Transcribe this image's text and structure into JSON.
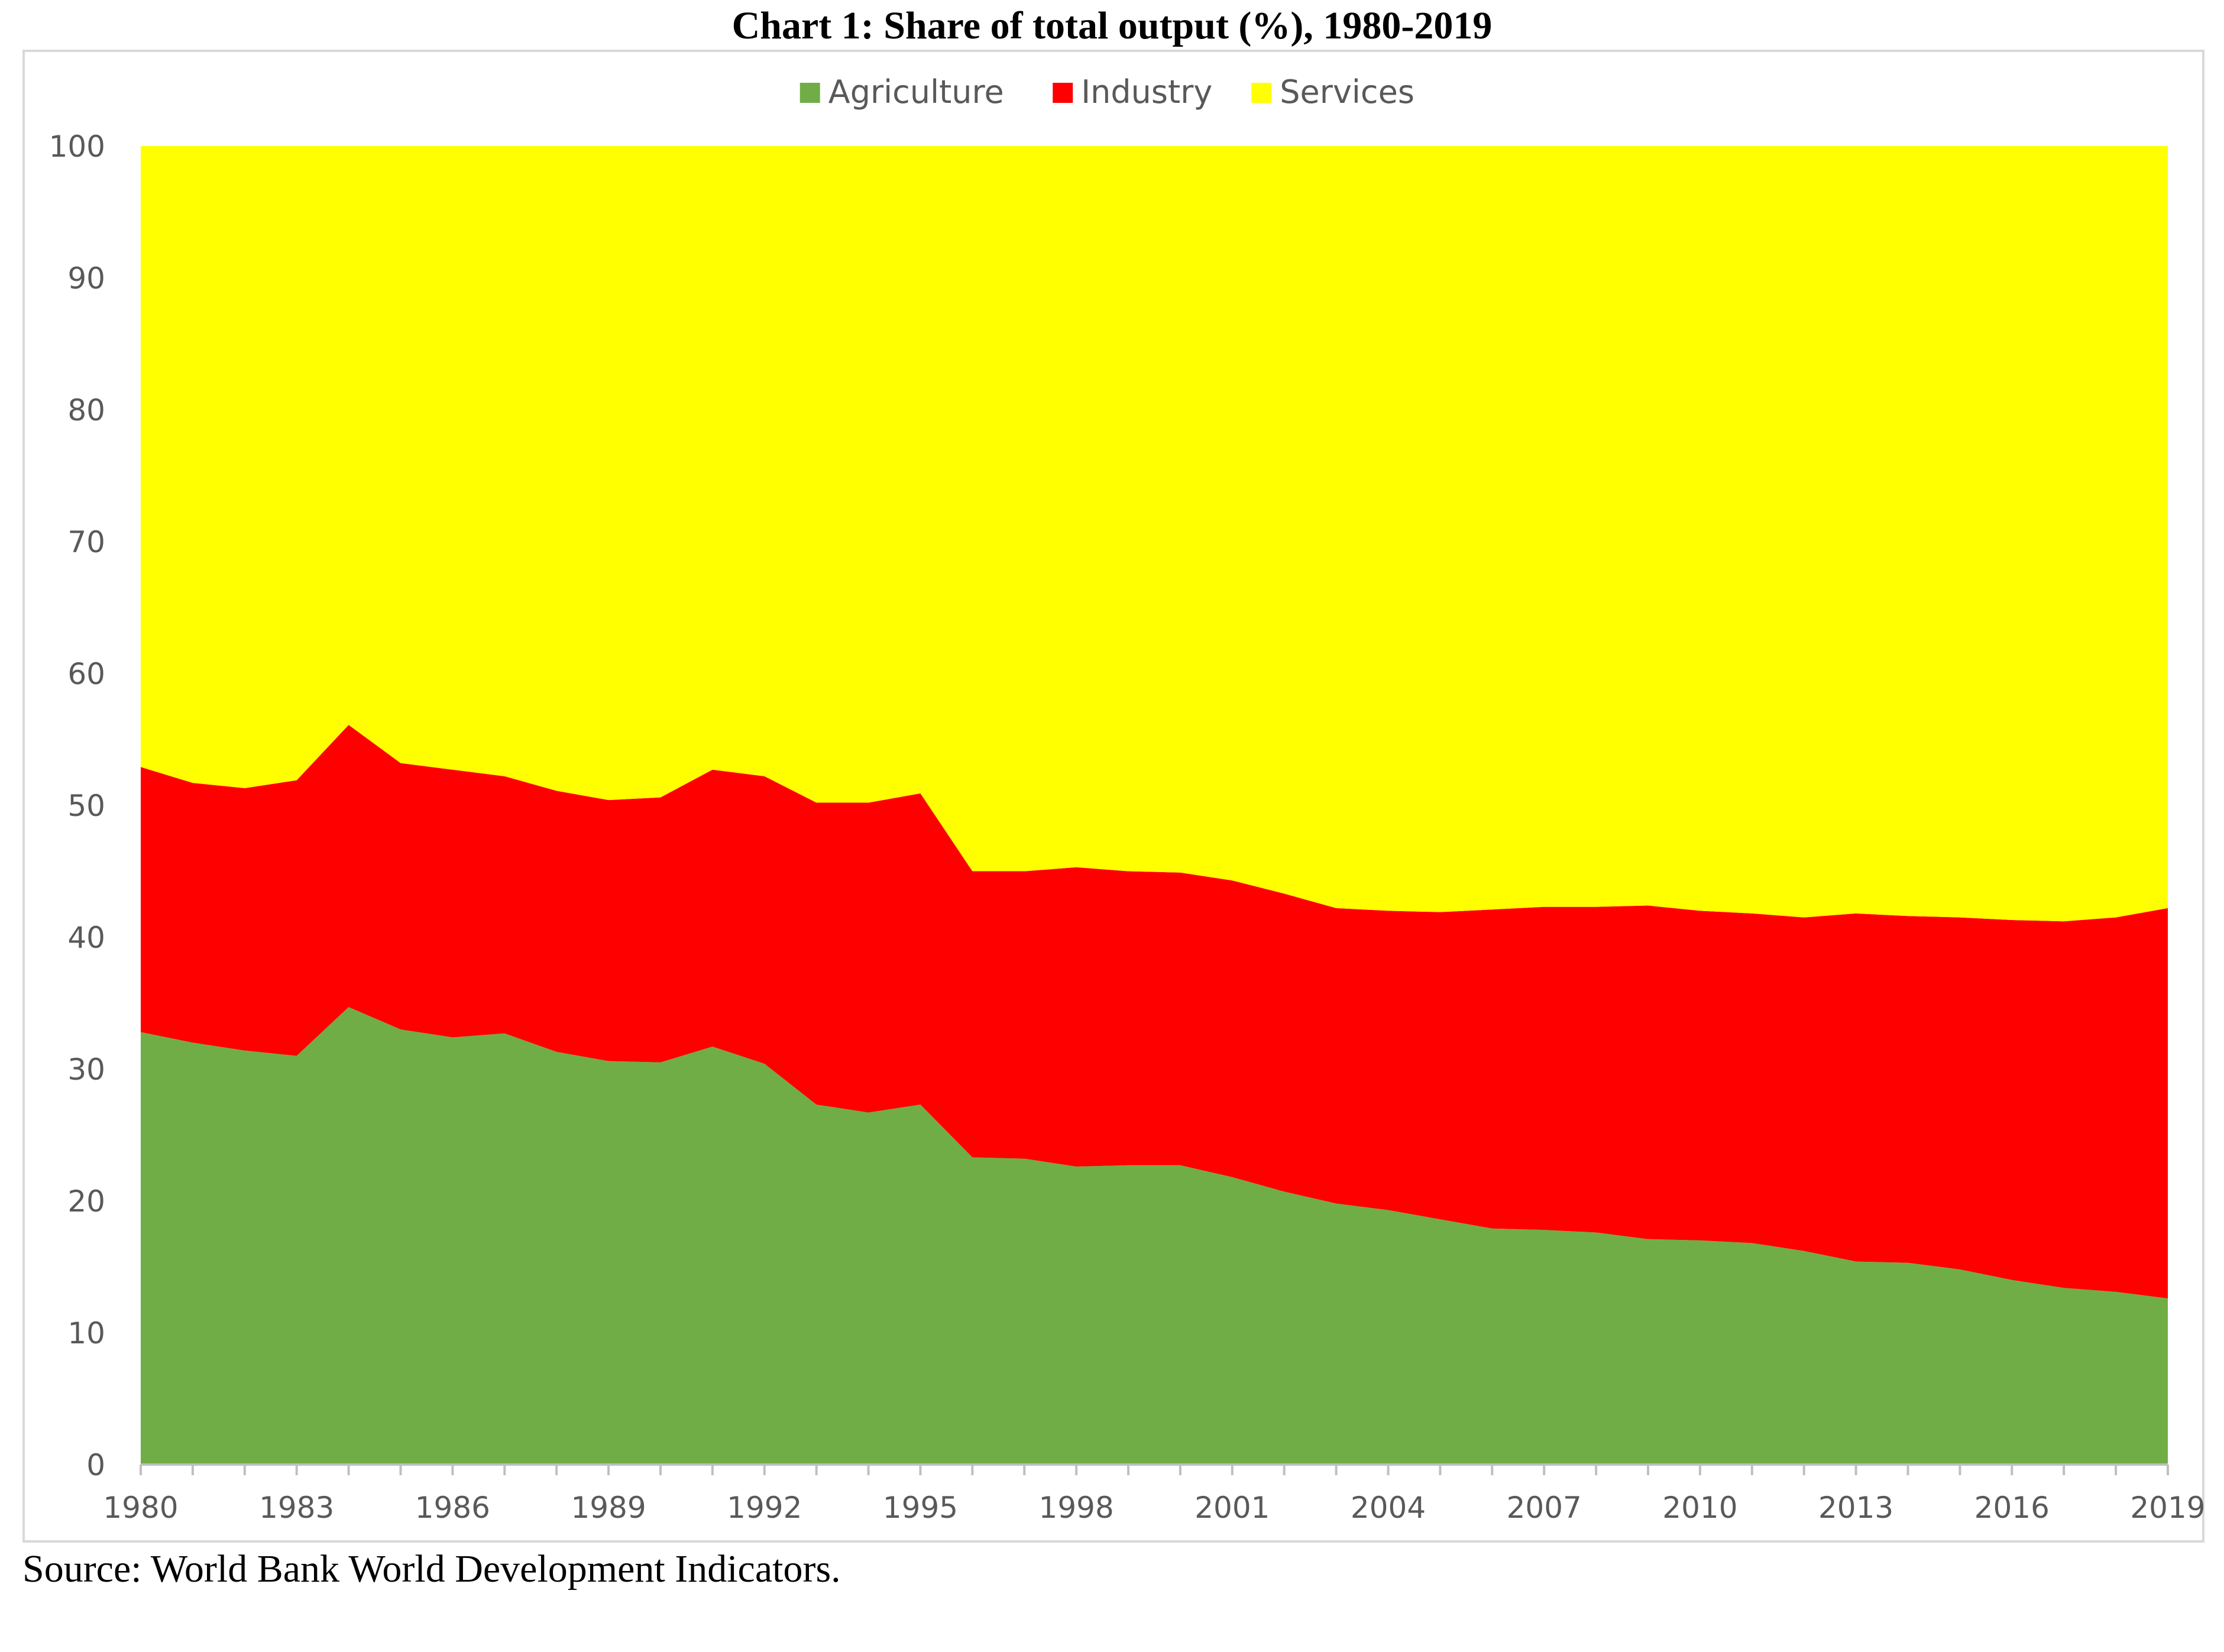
{
  "chart_title": "Chart 1: Share of total output (%), 1980-2019",
  "source_note": "Source: World Bank World Development Indicators.",
  "chart_data": {
    "type": "area",
    "stacked": true,
    "title": "Chart 1: Share of total output (%), 1980-2019",
    "xlabel": "",
    "ylabel": "",
    "ylim": [
      0,
      100
    ],
    "yticks": [
      0,
      10,
      20,
      30,
      40,
      50,
      60,
      70,
      80,
      90,
      100
    ],
    "xtick_labels": [
      "1980",
      "1983",
      "1986",
      "1989",
      "1992",
      "1995",
      "1998",
      "2001",
      "2004",
      "2007",
      "2010",
      "2013",
      "2016",
      "2019"
    ],
    "grid": false,
    "legend_position": "top",
    "x": [
      1980,
      1981,
      1982,
      1983,
      1984,
      1985,
      1986,
      1987,
      1988,
      1989,
      1990,
      1991,
      1992,
      1993,
      1994,
      1995,
      1996,
      1997,
      1998,
      1999,
      2000,
      2001,
      2002,
      2003,
      2004,
      2005,
      2006,
      2007,
      2008,
      2009,
      2010,
      2011,
      2012,
      2013,
      2014,
      2015,
      2016,
      2017,
      2018,
      2019
    ],
    "series": [
      {
        "name": "Agriculture",
        "color": "#70ad47",
        "values": [
          32.8,
          32.0,
          31.4,
          31.0,
          34.7,
          33.0,
          32.4,
          32.7,
          31.3,
          30.6,
          30.5,
          31.7,
          30.4,
          27.3,
          26.7,
          27.3,
          23.3,
          23.2,
          22.6,
          22.7,
          22.7,
          21.8,
          20.7,
          19.8,
          19.3,
          18.6,
          17.9,
          17.8,
          17.6,
          17.1,
          17.0,
          16.8,
          16.2,
          15.4,
          15.3,
          14.8,
          14.0,
          13.4,
          13.1,
          12.6
        ]
      },
      {
        "name": "Industry",
        "color": "#ff0000",
        "values": [
          20.1,
          19.7,
          19.9,
          20.9,
          21.4,
          20.2,
          20.3,
          19.5,
          19.8,
          19.8,
          20.1,
          21.0,
          21.8,
          22.9,
          23.5,
          23.6,
          21.7,
          21.8,
          22.7,
          22.3,
          22.2,
          22.5,
          22.6,
          22.4,
          22.7,
          23.3,
          24.2,
          24.5,
          24.7,
          25.3,
          25.0,
          25.0,
          25.3,
          26.4,
          26.3,
          26.7,
          27.3,
          27.8,
          28.4,
          29.6
        ]
      },
      {
        "name": "Services",
        "color": "#ffff00",
        "values": [
          47.1,
          48.3,
          48.7,
          48.1,
          43.9,
          46.8,
          47.3,
          47.8,
          48.9,
          49.6,
          49.4,
          47.3,
          47.8,
          49.8,
          49.8,
          49.1,
          55.0,
          55.0,
          54.7,
          55.0,
          55.1,
          55.7,
          56.7,
          57.8,
          58.0,
          58.1,
          57.9,
          57.7,
          57.7,
          57.6,
          58.0,
          58.2,
          58.5,
          58.2,
          58.4,
          58.5,
          58.7,
          58.8,
          58.5,
          57.8
        ]
      }
    ]
  }
}
